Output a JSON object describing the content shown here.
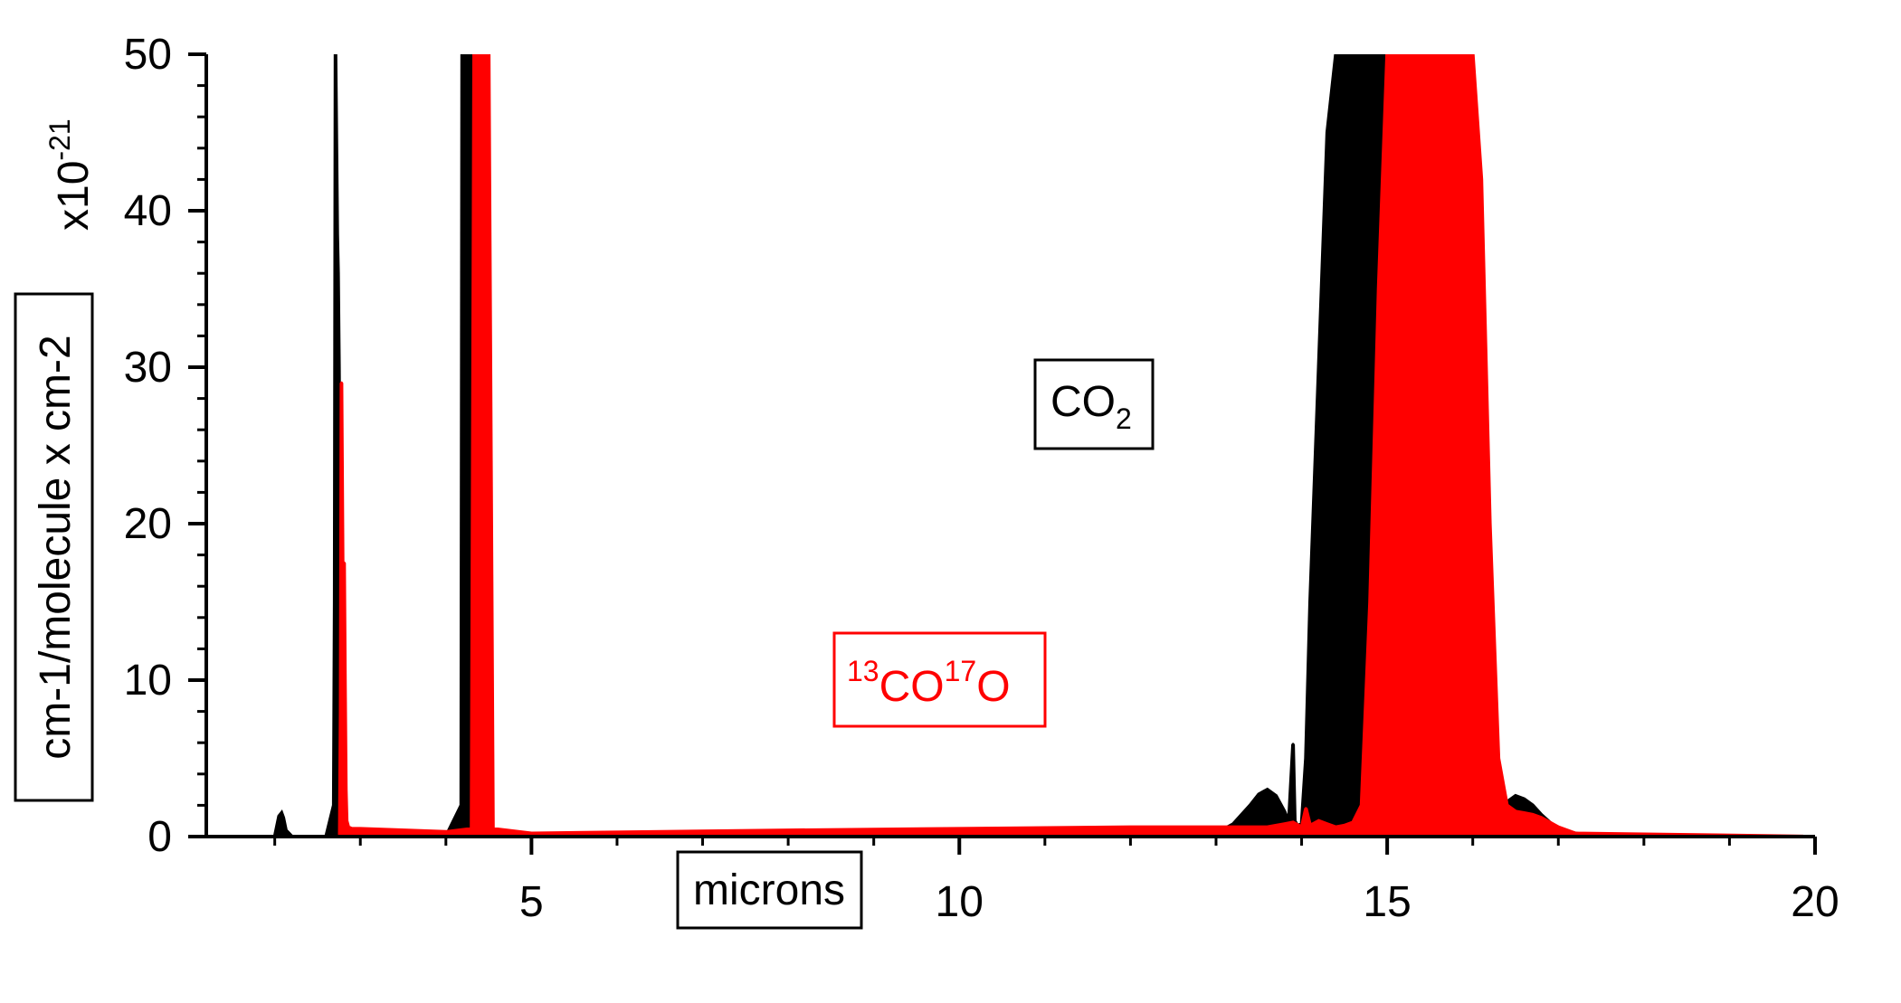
{
  "chart_data": {
    "type": "line",
    "title": "",
    "xlabel": "microns",
    "ylabel": "cm-1/molecule x cm-2",
    "y_multiplier": {
      "prefix": "x10",
      "exponent": "-21"
    },
    "xlim": [
      1.2,
      20
    ],
    "ylim": [
      0,
      50
    ],
    "x_ticks": [
      5,
      10,
      15,
      20
    ],
    "y_ticks": [
      0,
      10,
      20,
      30,
      40,
      50
    ],
    "grid": false,
    "legend": "none",
    "series": [
      {
        "name": "CO2",
        "color": "#000000",
        "label": {
          "main": "CO",
          "sub": "2"
        },
        "x": [
          1.3,
          2.0,
          2.05,
          2.08,
          2.1,
          2.13,
          2.2,
          2.6,
          2.69,
          2.7,
          2.71,
          2.72,
          2.73,
          2.74,
          2.75,
          2.76,
          2.77,
          2.78,
          2.8,
          3.0,
          4.0,
          4.18,
          4.19,
          4.2,
          4.25,
          4.3,
          4.32,
          4.33,
          4.34,
          4.5,
          5,
          8,
          10,
          12,
          13.0,
          13.2,
          13.4,
          13.5,
          13.6,
          13.7,
          13.8,
          13.85,
          13.9,
          13.92,
          13.95,
          14.0,
          14.05,
          14.1,
          14.2,
          14.3,
          14.4,
          14.5,
          14.6,
          14.7,
          14.8,
          14.9,
          15.0,
          15.05,
          15.1,
          15.2,
          15.3,
          15.35,
          15.4,
          15.45,
          15.5,
          15.55,
          15.6,
          15.7,
          15.8,
          15.9,
          16.0,
          16.1,
          16.2,
          16.3,
          16.4,
          16.5,
          16.6,
          16.7,
          16.8,
          16.9,
          17.0,
          17.2,
          17.4,
          17.6,
          20
        ],
        "y": [
          0,
          0,
          1.3,
          1.5,
          1.2,
          0.4,
          0,
          0,
          2.0,
          15.0,
          50.0,
          44.0,
          38.5,
          36.0,
          30.0,
          22.0,
          12.0,
          4.0,
          0,
          0,
          0,
          2.0,
          50.0,
          50.0,
          50.0,
          50.0,
          50.0,
          3.0,
          0,
          0,
          0,
          0,
          0,
          0,
          0.2,
          0.8,
          2.0,
          2.7,
          3.0,
          2.6,
          1.6,
          0.9,
          5.9,
          1.0,
          0.7,
          0.8,
          5.0,
          15.0,
          30.0,
          45.0,
          50.0,
          50.0,
          50.0,
          50.0,
          50.0,
          50.0,
          50.0,
          50.0,
          50.0,
          50.0,
          50.0,
          50.0,
          42.0,
          40.0,
          50.0,
          38.0,
          34.0,
          20.0,
          8.0,
          3.0,
          1.0,
          0.8,
          0.8,
          1.2,
          2.2,
          2.6,
          2.4,
          2.0,
          1.4,
          0.9,
          0.5,
          0.2,
          0.05,
          0,
          0
        ]
      },
      {
        "name": "13CO17O",
        "color": "#ff0000",
        "label": {
          "sup1": "13",
          "main1": "CO",
          "sup2": "17",
          "main2": "O"
        },
        "x": [
          2.76,
          2.77,
          2.78,
          2.79,
          2.8,
          2.81,
          2.82,
          2.83,
          2.84,
          2.86,
          2.9,
          3.0,
          4.0,
          4.3,
          4.33,
          4.35,
          4.4,
          4.45,
          4.5,
          4.55,
          5,
          8,
          10,
          12,
          13.0,
          13.2,
          13.4,
          13.6,
          13.8,
          13.9,
          14.0,
          14.05,
          14.1,
          14.2,
          14.3,
          14.4,
          14.5,
          14.6,
          14.7,
          14.8,
          14.9,
          15.0,
          15.1,
          15.2,
          15.3,
          15.4,
          15.5,
          15.6,
          15.7,
          15.8,
          15.9,
          16.0,
          16.1,
          16.2,
          16.3,
          16.4,
          16.5,
          16.6,
          16.7,
          16.8,
          16.9,
          17.0,
          17.2,
          20
        ],
        "y": [
          0,
          8.0,
          29.0,
          20.0,
          12.0,
          17.5,
          10.0,
          3.0,
          1.0,
          0.6,
          0.5,
          0.5,
          0.3,
          0.5,
          50.0,
          50.0,
          50.0,
          50.0,
          50.0,
          0.5,
          0.2,
          0.4,
          0.5,
          0.6,
          0.6,
          0.6,
          0.6,
          0.6,
          0.8,
          0.9,
          0.6,
          1.8,
          0.7,
          1.0,
          0.8,
          0.6,
          0.7,
          0.9,
          2.0,
          15.0,
          35.0,
          50.0,
          50.0,
          50.0,
          50.0,
          50.0,
          50.0,
          50.0,
          50.0,
          50.0,
          50.0,
          50.0,
          42.0,
          20.0,
          5.0,
          2.0,
          1.6,
          1.5,
          1.4,
          1.2,
          0.9,
          0.6,
          0.2,
          0
        ]
      }
    ]
  }
}
